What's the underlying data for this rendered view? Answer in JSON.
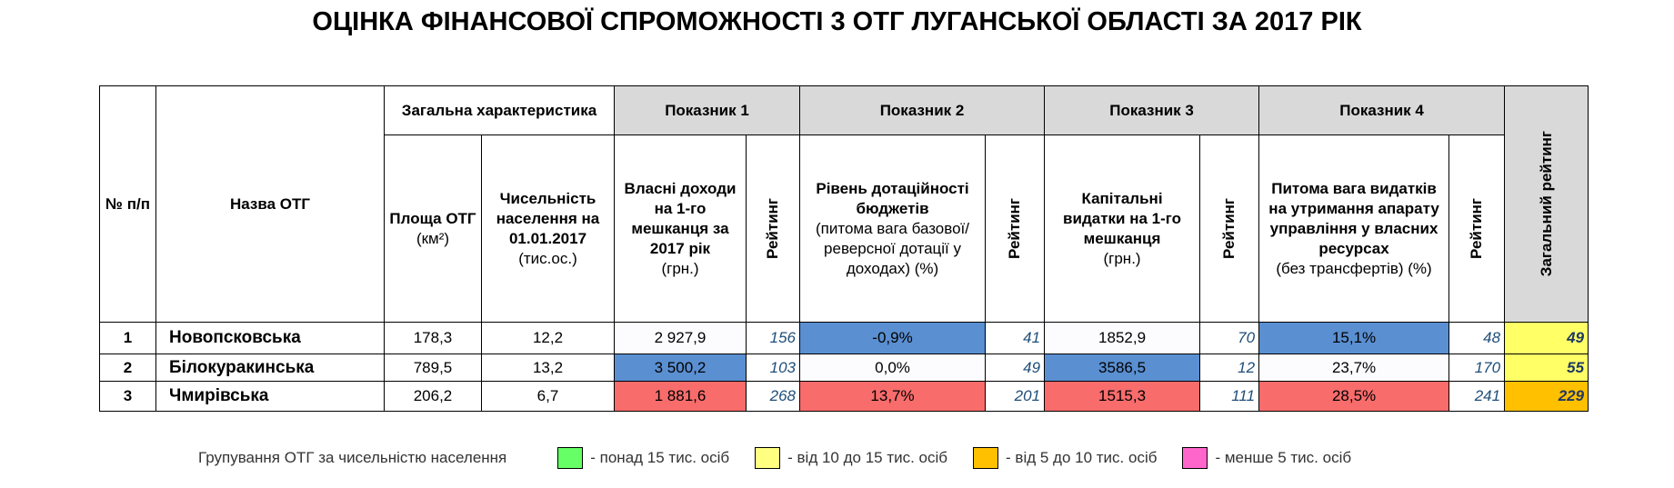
{
  "title": "ОЦІНКА ФІНАНСОВОЇ СПРОМОЖНОСТІ 3 ОТГ ЛУГАНСЬКОЇ ОБЛАСТІ ЗА 2017 РІК",
  "header": {
    "number": "№ п/п",
    "name": "Назва ОТГ",
    "general": "Загальна характеристика",
    "area": {
      "label": "Площа ОТГ",
      "unit": "(км²)"
    },
    "population": {
      "label": "Чисельність населення на 01.01.2017",
      "unit": "(тис.ос.)"
    },
    "indicators": [
      {
        "title": "Показник 1",
        "label": "Власні доходи на 1-го мешканця за 2017 рік",
        "unit": "(грн.)"
      },
      {
        "title": "Показник 2",
        "label": "Рівень дотаційності бюджетів",
        "unit": "(питома вага базової/ реверсної дотації  у доходах) (%)"
      },
      {
        "title": "Показник 3",
        "label": "Капітальні видатки на 1-го мешканця",
        "unit": "(грн.)"
      },
      {
        "title": "Показник 4",
        "label": "Питома вага видатків на утримання апарату управління у власних ресурсах",
        "unit": "(без трансфертів) (%)"
      }
    ],
    "rating": "Рейтинг",
    "total": "Загальний рейтинг"
  },
  "rows": [
    [
      "1",
      "Новопсковська",
      "178,3",
      "12,2",
      "2 927,9",
      "156",
      "-0,9%",
      "41",
      "1852,9",
      "70",
      "15,1%",
      "48",
      "49"
    ],
    [
      "2",
      "Білокуракинська",
      "789,5",
      "13,2",
      "3 500,2",
      "103",
      "0,0%",
      "49",
      "3586,5",
      "12",
      "23,7%",
      "170",
      "55"
    ],
    [
      "3",
      "Чмирівська",
      "206,2",
      "6,7",
      "1 881,6",
      "268",
      "13,7%",
      "201",
      "1515,3",
      "111",
      "28,5%",
      "241",
      "229"
    ]
  ],
  "legend": {
    "title": "Групування ОТГ за чисельністю населення",
    "items": [
      "- понад 15 тис. осіб",
      "-  від 10 до 15 тис. осіб",
      "-  від 5 до 10 тис. осіб",
      "-  менше 5 тис. осіб"
    ]
  }
}
